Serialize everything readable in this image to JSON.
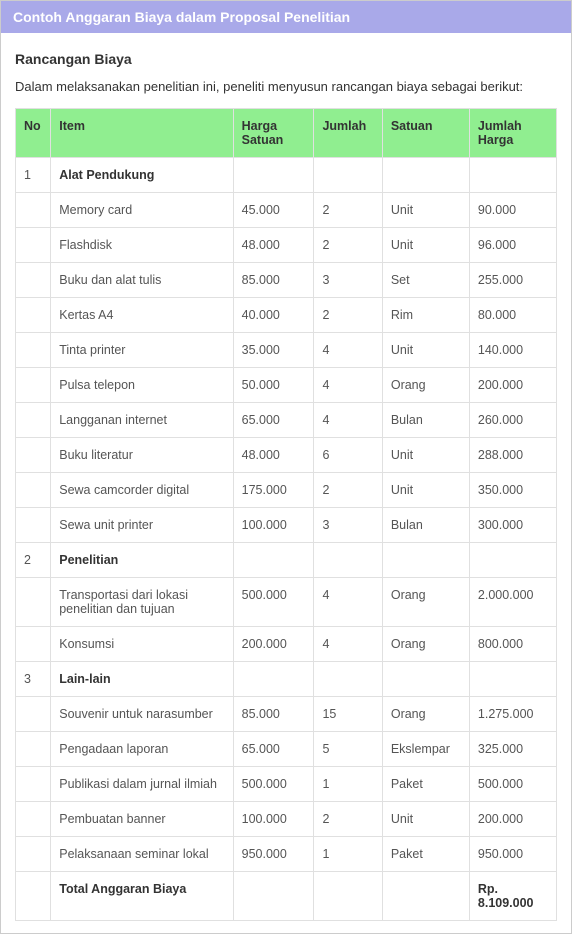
{
  "header": {
    "title": "Contoh Anggaran Biaya dalam Proposal Penelitian"
  },
  "subtitle": "Rancangan Biaya",
  "intro": "Dalam melaksanakan penelitian ini, peneliti menyusun rancangan biaya sebagai berikut:",
  "table": {
    "type": "table",
    "header_bg": "#90ee90",
    "border_color": "#e0e0e0",
    "columns": [
      "No",
      "Item",
      "Harga Satuan",
      "Jumlah",
      "Satuan",
      "Jumlah Harga"
    ],
    "rows": [
      {
        "type": "section",
        "no": "1",
        "item": "Alat Pendukung"
      },
      {
        "type": "item",
        "item": "Memory card",
        "harga": "45.000",
        "jumlah": "2",
        "satuan": "Unit",
        "total": "90.000"
      },
      {
        "type": "item",
        "item": "Flashdisk",
        "harga": "48.000",
        "jumlah": "2",
        "satuan": "Unit",
        "total": "96.000"
      },
      {
        "type": "item",
        "item": "Buku dan alat tulis",
        "harga": "85.000",
        "jumlah": "3",
        "satuan": "Set",
        "total": "255.000"
      },
      {
        "type": "item",
        "item": "Kertas A4",
        "harga": "40.000",
        "jumlah": "2",
        "satuan": "Rim",
        "total": "80.000"
      },
      {
        "type": "item",
        "item": "Tinta printer",
        "harga": "35.000",
        "jumlah": "4",
        "satuan": "Unit",
        "total": "140.000"
      },
      {
        "type": "item",
        "item": "Pulsa telepon",
        "harga": "50.000",
        "jumlah": "4",
        "satuan": "Orang",
        "total": "200.000"
      },
      {
        "type": "item",
        "item": "Langganan internet",
        "harga": "65.000",
        "jumlah": "4",
        "satuan": "Bulan",
        "total": "260.000"
      },
      {
        "type": "item",
        "item": "Buku literatur",
        "harga": "48.000",
        "jumlah": "6",
        "satuan": "Unit",
        "total": "288.000"
      },
      {
        "type": "item",
        "item": "Sewa camcorder digital",
        "harga": "175.000",
        "jumlah": "2",
        "satuan": "Unit",
        "total": "350.000"
      },
      {
        "type": "item",
        "item": "Sewa unit printer",
        "harga": "100.000",
        "jumlah": "3",
        "satuan": "Bulan",
        "total": "300.000"
      },
      {
        "type": "section",
        "no": "2",
        "item": "Penelitian"
      },
      {
        "type": "item",
        "item": "Transportasi dari lokasi penelitian dan tujuan",
        "harga": "500.000",
        "jumlah": "4",
        "satuan": "Orang",
        "total": "2.000.000"
      },
      {
        "type": "item",
        "item": "Konsumsi",
        "harga": "200.000",
        "jumlah": "4",
        "satuan": "Orang",
        "total": "800.000"
      },
      {
        "type": "section",
        "no": "3",
        "item": "Lain-lain"
      },
      {
        "type": "item",
        "item": "Souvenir untuk narasumber",
        "harga": "85.000",
        "jumlah": "15",
        "satuan": "Orang",
        "total": "1.275.000"
      },
      {
        "type": "item",
        "item": "Pengadaan laporan",
        "harga": "65.000",
        "jumlah": "5",
        "satuan": "Ekslempar",
        "total": "325.000"
      },
      {
        "type": "item",
        "item": "Publikasi dalam jurnal ilmiah",
        "harga": "500.000",
        "jumlah": "1",
        "satuan": "Paket",
        "total": "500.000"
      },
      {
        "type": "item",
        "item": "Pembuatan banner",
        "harga": "100.000",
        "jumlah": "2",
        "satuan": "Unit",
        "total": "200.000"
      },
      {
        "type": "item",
        "item": "Pelaksanaan seminar lokal",
        "harga": "950.000",
        "jumlah": "1",
        "satuan": "Paket",
        "total": "950.000"
      },
      {
        "type": "total",
        "item": "Total Anggaran Biaya",
        "total": "Rp. 8.109.000"
      }
    ]
  }
}
